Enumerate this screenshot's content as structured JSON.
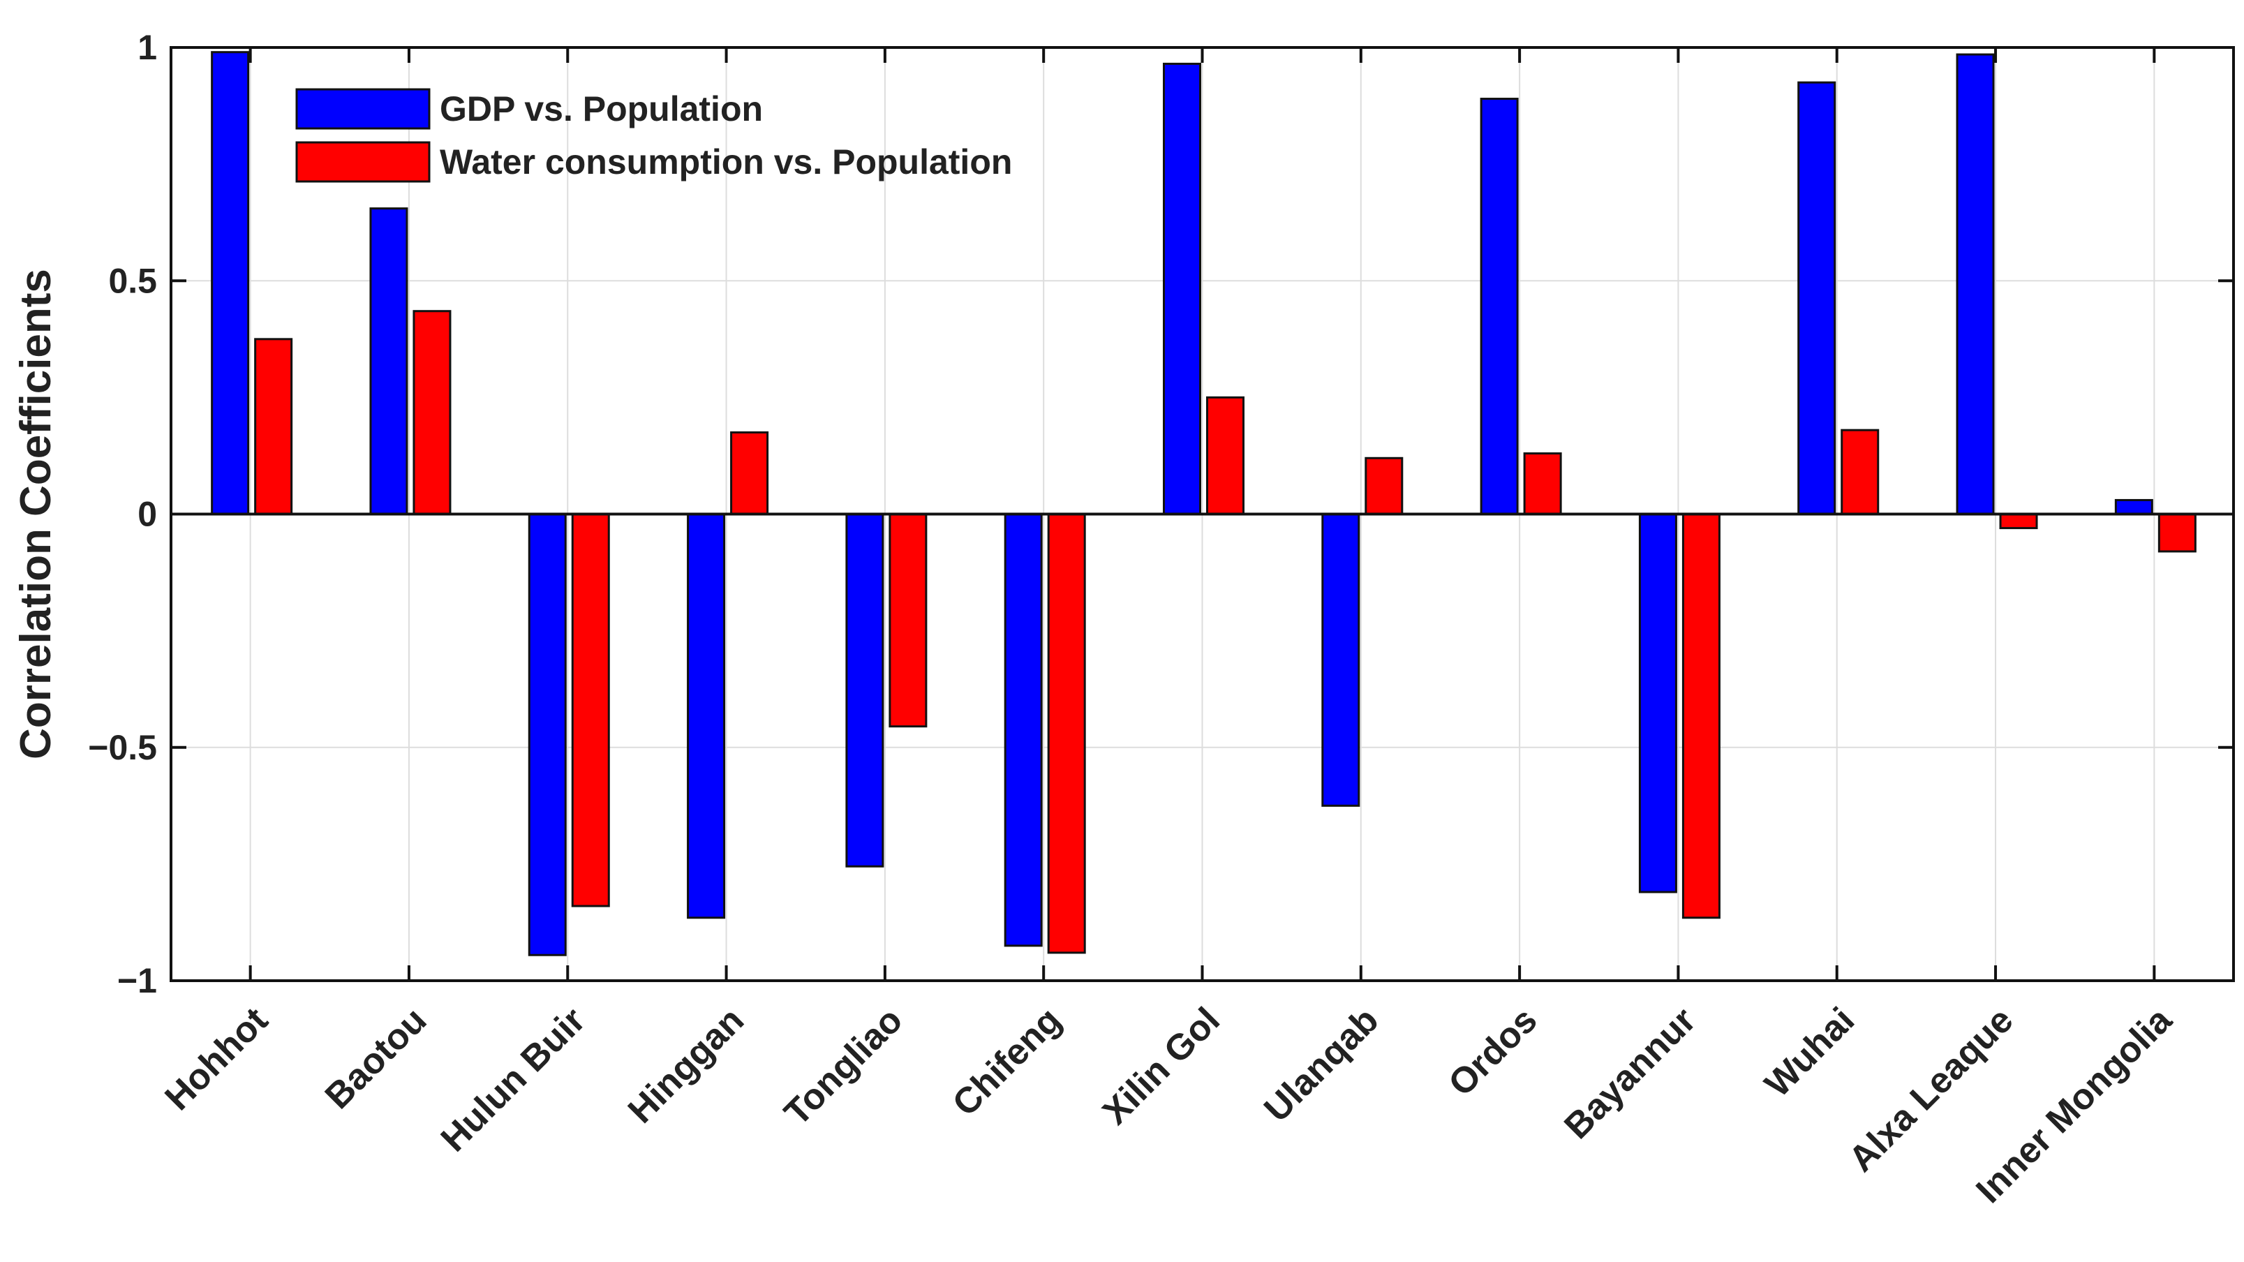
{
  "chart_data": {
    "type": "bar",
    "title": "",
    "xlabel": "",
    "ylabel": "Correlation Coefficients",
    "ylim": [
      -1,
      1
    ],
    "yticks": [
      -1,
      -0.5,
      0,
      0.5,
      1
    ],
    "ytick_labels": [
      "−1",
      "−0.5",
      "0",
      "0.5",
      "1"
    ],
    "grid": true,
    "legend_position": "top-left",
    "categories": [
      "Hohhot",
      "Baotou",
      "Hulun Buir",
      "Hinggan",
      "Tongliao",
      "Chifeng",
      "Xilin Gol",
      "Ulanqab",
      "Ordos",
      "Bayannur",
      "Wuhai",
      "Alxa Leaque",
      "Inner Mongolia"
    ],
    "series": [
      {
        "name": "GDP vs. Population",
        "color": "#0000ff",
        "values": [
          0.99,
          0.655,
          -0.945,
          -0.865,
          -0.755,
          -0.925,
          0.965,
          -0.625,
          0.89,
          -0.81,
          0.925,
          0.985,
          0.03
        ]
      },
      {
        "name": "Water consumption vs. Population",
        "color": "#ff0000",
        "values": [
          0.375,
          0.435,
          -0.84,
          0.175,
          -0.455,
          -0.94,
          0.25,
          0.12,
          0.13,
          -0.865,
          0.18,
          -0.03,
          -0.08
        ]
      }
    ]
  }
}
